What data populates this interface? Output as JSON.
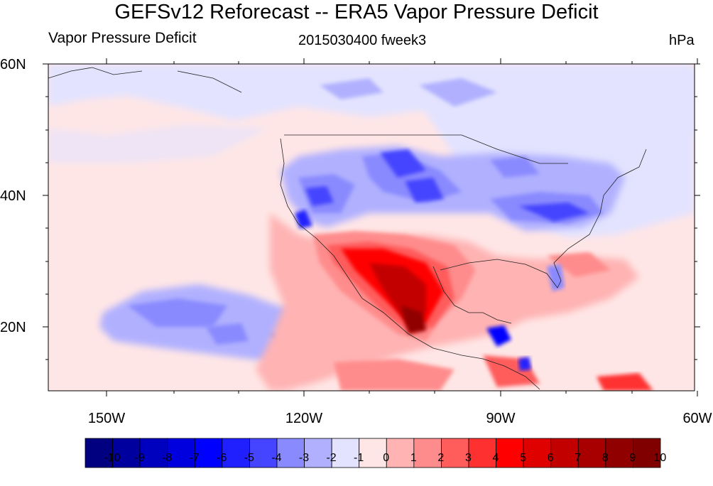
{
  "title": "GEFSv12 Reforecast -- ERA5 Vapor Pressure Deficit",
  "left_label": "Vapor Pressure Deficit",
  "center_label": "2015030400 fweek3",
  "right_label": "hPa",
  "lat_labels": [
    "60N",
    "40N",
    "20N"
  ],
  "lon_labels": [
    "150W",
    "120W",
    "90W",
    "60W"
  ],
  "colorbar": {
    "labels": [
      "-10",
      "-9",
      "-8",
      "-7",
      "-6",
      "-5",
      "-4",
      "-3",
      "-2",
      "-1",
      "0",
      "1",
      "2",
      "3",
      "4",
      "5",
      "6",
      "7",
      "8",
      "9",
      "10"
    ],
    "colors": [
      "#000080",
      "#00009f",
      "#0000bf",
      "#0000df",
      "#0000ff",
      "#2020ff",
      "#4545ff",
      "#8a8aff",
      "#b0b0ff",
      "#e3e3ff",
      "#ffe6e6",
      "#ffb3b3",
      "#ff8c8c",
      "#ff5c5c",
      "#ff3030",
      "#ff0000",
      "#df0000",
      "#c30000",
      "#a80000",
      "#900000",
      "#800000"
    ]
  },
  "map": {
    "projection": "cylindrical equidistant",
    "lon_range": [
      -159,
      -60
    ],
    "lat_range": [
      10,
      60
    ]
  }
}
